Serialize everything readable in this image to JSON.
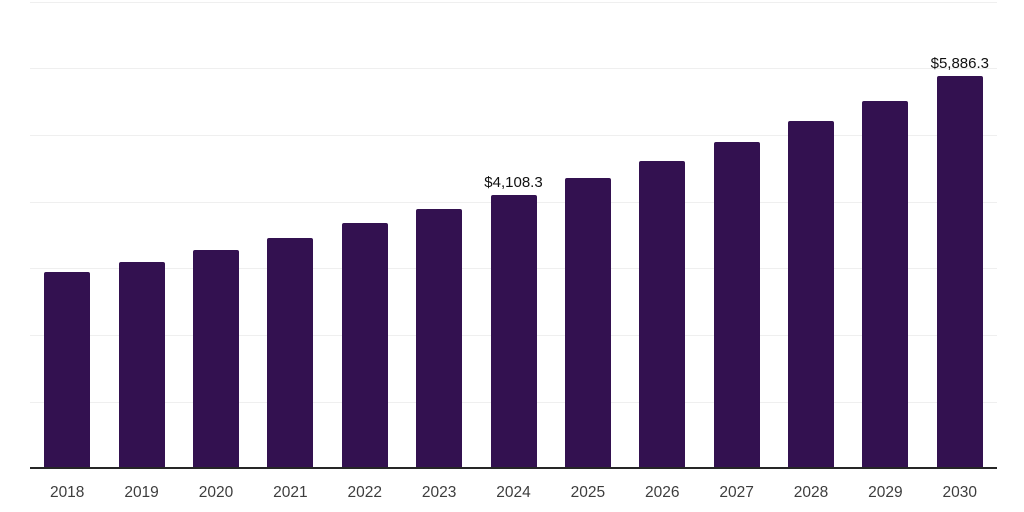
{
  "chart_data": {
    "type": "bar",
    "title": "",
    "xlabel": "",
    "ylabel": "",
    "categories": [
      "2018",
      "2019",
      "2020",
      "2021",
      "2022",
      "2023",
      "2024",
      "2025",
      "2026",
      "2027",
      "2028",
      "2029",
      "2030"
    ],
    "values": [
      2950,
      3100,
      3280,
      3460,
      3680,
      3900,
      4108.3,
      4360,
      4620,
      4900,
      5220,
      5520,
      5886.3
    ],
    "point_labels": {
      "2024": "$4,108.3",
      "2030": "$5,886.3"
    },
    "ylim": [
      0,
      7000
    ],
    "gridline_step": 1000,
    "grid": "horizontal",
    "y_axis_labels_visible": false,
    "legend": "none",
    "colors": {
      "bar": "#331150",
      "axis_line": "#262626",
      "gridline": "#efefef",
      "value_label": "#111111",
      "tick_label": "#3d3d3d",
      "background": "#ffffff"
    }
  }
}
